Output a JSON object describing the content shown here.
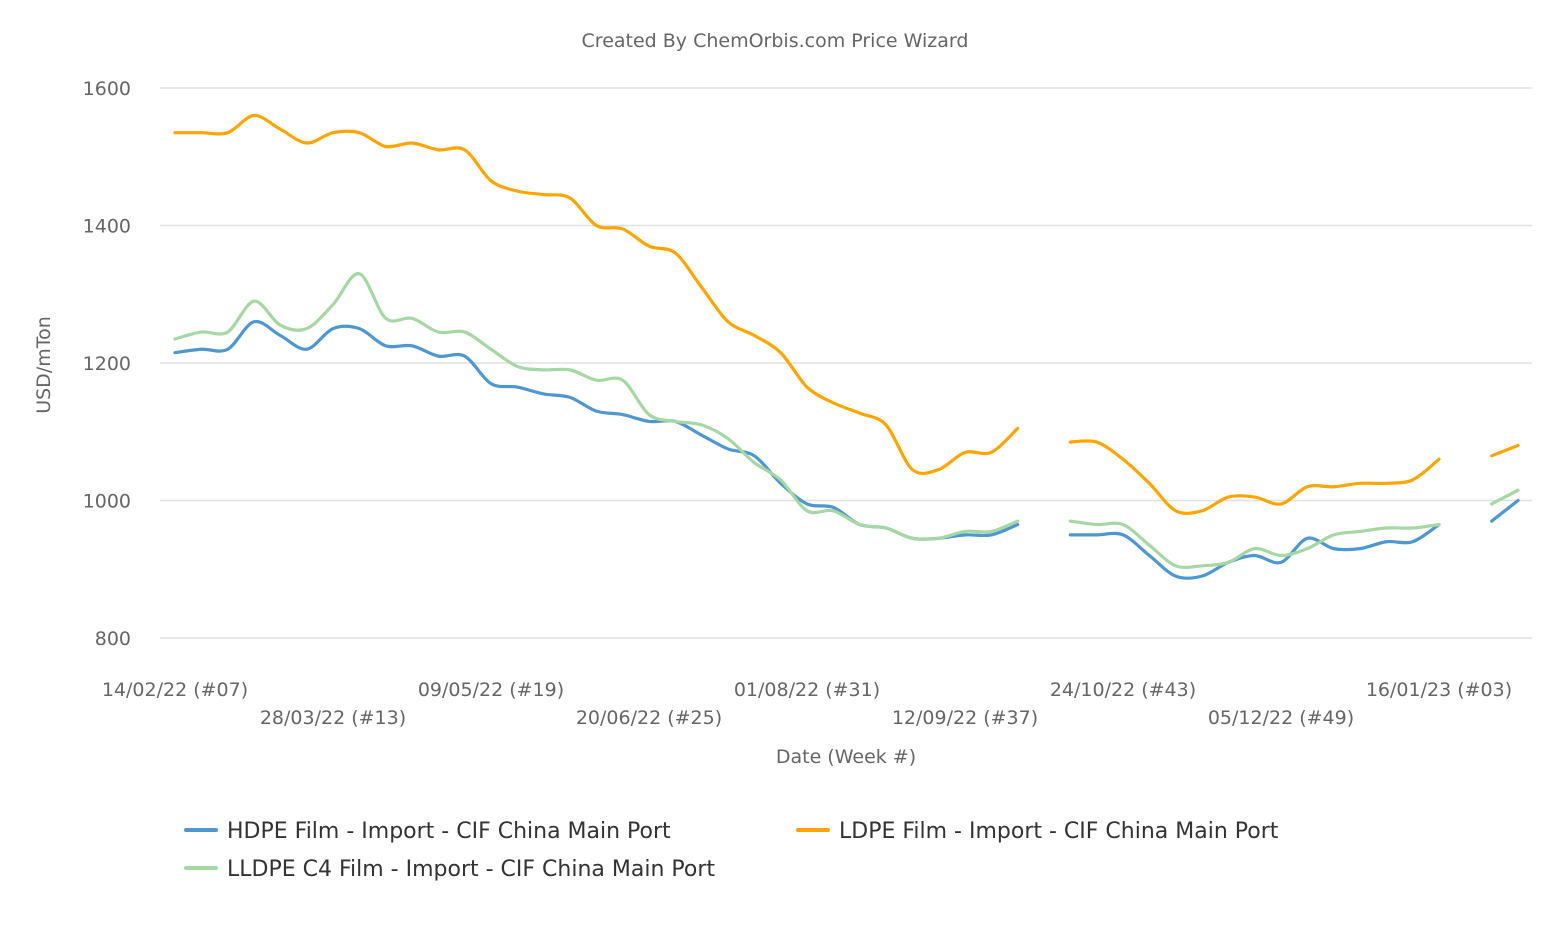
{
  "chart_data": {
    "type": "line",
    "title": "Created By ChemOrbis.com Price Wizard",
    "xlabel": "Date (Week #)",
    "ylabel": "USD/mTon",
    "ylim": [
      800,
      1600
    ],
    "yticks": [
      800,
      1000,
      1200,
      1400,
      1600
    ],
    "grid": true,
    "legend_position": "bottom",
    "categories": [
      "14/02/22 (#07)",
      "21/02/22 (#08)",
      "28/02/22 (#09)",
      "07/03/22 (#10)",
      "14/03/22 (#11)",
      "21/03/22 (#12)",
      "28/03/22 (#13)",
      "04/04/22 (#14)",
      "11/04/22 (#15)",
      "18/04/22 (#16)",
      "25/04/22 (#17)",
      "02/05/22 (#18)",
      "09/05/22 (#19)",
      "16/05/22 (#20)",
      "23/05/22 (#21)",
      "30/05/22 (#22)",
      "06/06/22 (#23)",
      "13/06/22 (#24)",
      "20/06/22 (#25)",
      "27/06/22 (#26)",
      "04/07/22 (#27)",
      "11/07/22 (#28)",
      "18/07/22 (#29)",
      "25/07/22 (#30)",
      "01/08/22 (#31)",
      "08/08/22 (#32)",
      "15/08/22 (#33)",
      "22/08/22 (#34)",
      "29/08/22 (#35)",
      "05/09/22 (#36)",
      "12/09/22 (#37)",
      "19/09/22 (#38)",
      "26/09/22 (#39)",
      "03/10/22 (#40)",
      "10/10/22 (#41)",
      "17/10/22 (#42)",
      "24/10/22 (#43)",
      "31/10/22 (#44)",
      "07/11/22 (#45)",
      "14/11/22 (#46)",
      "21/11/22 (#47)",
      "28/11/22 (#48)",
      "05/12/22 (#49)",
      "12/12/22 (#50)",
      "19/12/22 (#51)",
      "26/12/22 (#52)",
      "02/01/23 (#01)",
      "09/01/23 (#02)",
      "16/01/23 (#03)",
      "23/01/23 (#04)",
      "30/01/23 (#05)",
      "06/02/23 (#06)"
    ],
    "xtick_labels": [
      "14/02/22 (#07)",
      "28/03/22 (#13)",
      "09/05/22 (#19)",
      "20/06/22 (#25)",
      "01/08/22 (#31)",
      "12/09/22 (#37)",
      "24/10/22 (#43)",
      "05/12/22 (#49)",
      "16/01/23 (#03)"
    ],
    "series": [
      {
        "name": "HDPE Film - Import - CIF China Main Port",
        "color": "#4d97d2",
        "values": [
          1215,
          1220,
          1220,
          1260,
          1240,
          1220,
          1250,
          1250,
          1225,
          1225,
          1210,
          1210,
          1170,
          1165,
          1155,
          1150,
          1130,
          1125,
          1115,
          1115,
          1095,
          1075,
          1065,
          1025,
          995,
          990,
          965,
          960,
          945,
          945,
          950,
          950,
          965,
          null,
          950,
          950,
          950,
          920,
          890,
          890,
          910,
          920,
          910,
          945,
          930,
          930,
          940,
          940,
          965,
          null,
          970,
          1000
        ]
      },
      {
        "name": "LDPE Film - Import - CIF China Main Port",
        "color": "#ffa500",
        "values": [
          1535,
          1535,
          1535,
          1560,
          1540,
          1520,
          1535,
          1535,
          1515,
          1520,
          1510,
          1510,
          1465,
          1450,
          1445,
          1440,
          1400,
          1395,
          1370,
          1360,
          1310,
          1260,
          1240,
          1215,
          1165,
          1142,
          1127,
          1110,
          1045,
          1045,
          1070,
          1070,
          1105,
          null,
          1085,
          1085,
          1060,
          1025,
          985,
          985,
          1005,
          1005,
          995,
          1020,
          1020,
          1025,
          1025,
          1030,
          1060,
          null,
          1065,
          1080
        ]
      },
      {
        "name": "LLDPE C4 Film - Import - CIF China Main Port",
        "color": "#a5d8a3",
        "values": [
          1235,
          1245,
          1245,
          1290,
          1255,
          1250,
          1285,
          1330,
          1265,
          1265,
          1245,
          1245,
          1220,
          1195,
          1190,
          1190,
          1175,
          1175,
          1125,
          1115,
          1110,
          1090,
          1055,
          1030,
          985,
          985,
          965,
          960,
          945,
          945,
          955,
          955,
          970,
          null,
          970,
          965,
          965,
          935,
          905,
          905,
          910,
          930,
          920,
          930,
          950,
          955,
          960,
          960,
          965,
          null,
          995,
          1015
        ]
      }
    ]
  }
}
